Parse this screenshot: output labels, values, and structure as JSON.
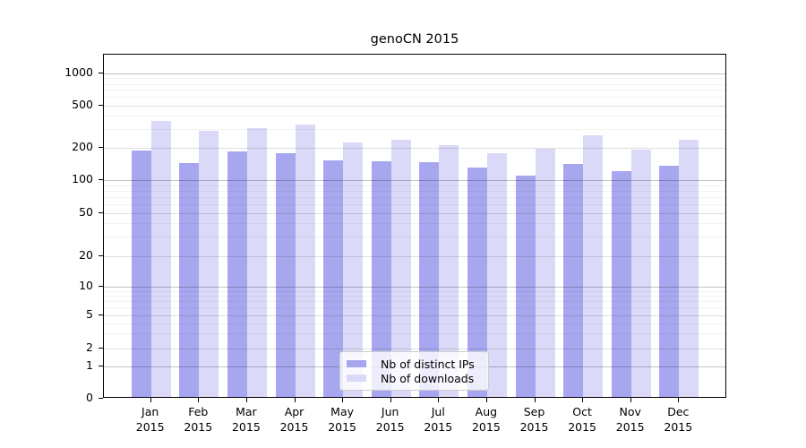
{
  "title": "genoCN 2015",
  "legend": {
    "items": [
      {
        "label": "Nb of distinct IPs",
        "color": "#a7a7f0"
      },
      {
        "label": "Nb of downloads",
        "color": "#dadaf8"
      }
    ]
  },
  "y_axis": {
    "tick_labels": [
      "0",
      "1",
      "2",
      "5",
      "10",
      "20",
      "50",
      "100",
      "200",
      "500",
      "1000"
    ],
    "ticks": [
      0,
      1,
      2,
      5,
      10,
      20,
      50,
      100,
      200,
      500,
      1000
    ],
    "minor_ticks": [
      3,
      4,
      6,
      7,
      8,
      9,
      30,
      40,
      60,
      70,
      80,
      90,
      300,
      400,
      600,
      700,
      800,
      900
    ],
    "scale": "log",
    "range": [
      0,
      1000
    ]
  },
  "chart_data": {
    "type": "bar",
    "title": "genoCN 2015",
    "categories": [
      "Jan 2015",
      "Feb 2015",
      "Mar 2015",
      "Apr 2015",
      "May 2015",
      "Jun 2015",
      "Jul 2015",
      "Aug 2015",
      "Sep 2015",
      "Oct 2015",
      "Nov 2015",
      "Dec 2015"
    ],
    "series": [
      {
        "name": "Nb of distinct IPs",
        "color": "#a7a7f0",
        "values": [
          183,
          138,
          179,
          173,
          146,
          144,
          141,
          127,
          105,
          136,
          116,
          132
        ]
      },
      {
        "name": "Nb of downloads",
        "color": "#dadaf8",
        "values": [
          348,
          280,
          296,
          318,
          216,
          228,
          206,
          173,
          189,
          255,
          185,
          231
        ]
      }
    ],
    "xlabel": "",
    "ylabel": "",
    "ylim": [
      0,
      1000
    ],
    "yscale": "log",
    "grid": true,
    "legend_position": "lower-center-inside"
  }
}
